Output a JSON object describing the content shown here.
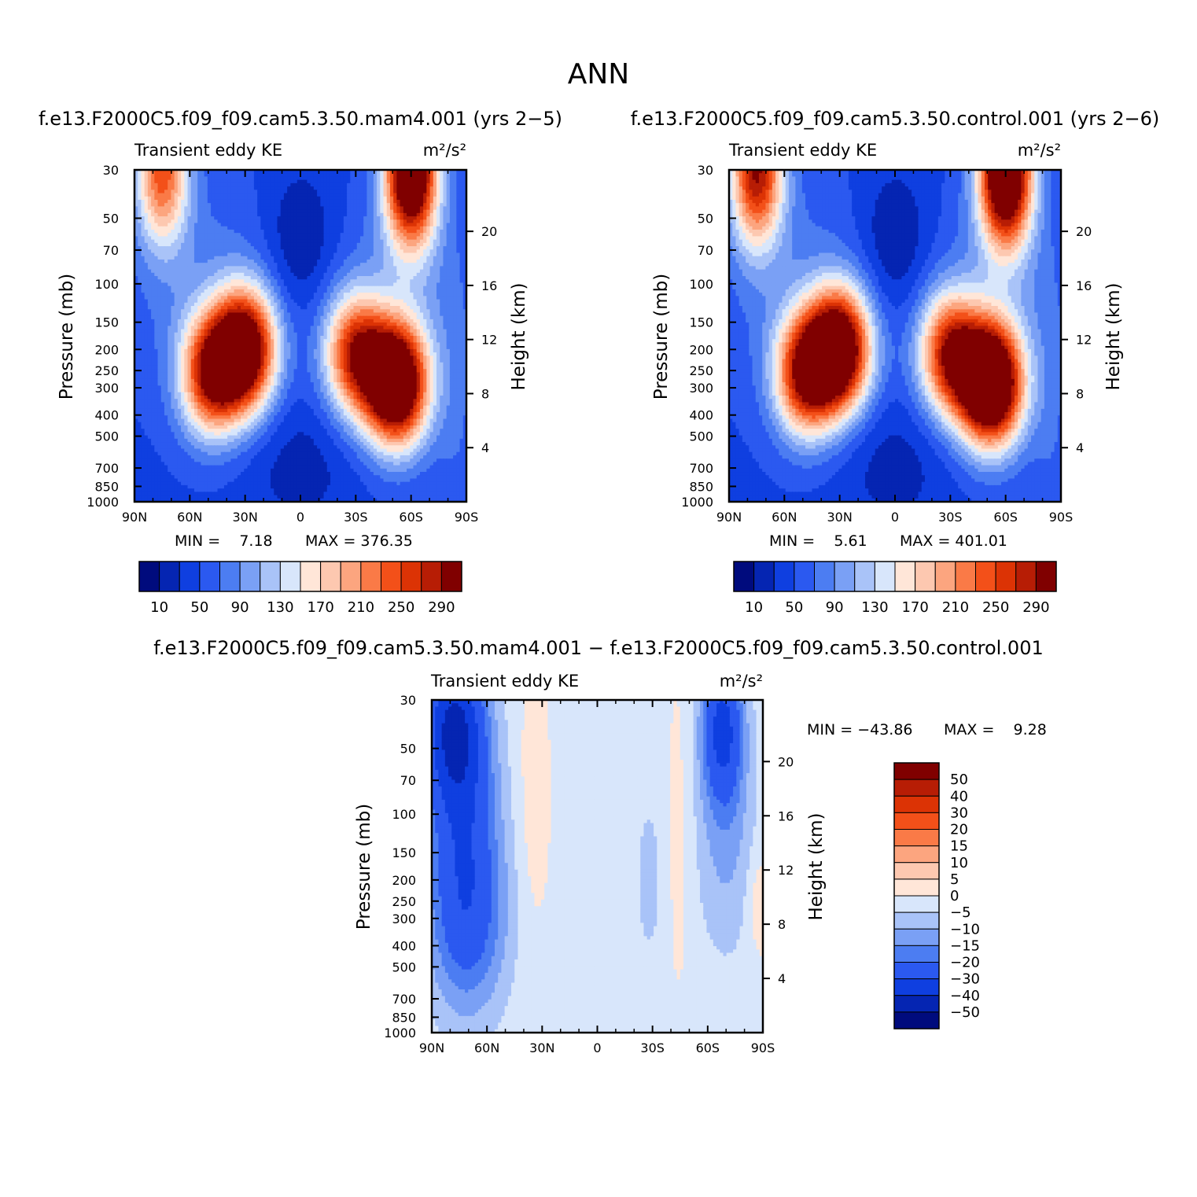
{
  "figure": {
    "title": "ANN",
    "diff_title": "f.e13.F2000C5.f09_f09.cam5.3.50.mam4.001 − f.e13.F2000C5.f09_f09.cam5.3.50.control.001"
  },
  "chart_data": [
    {
      "type": "heatmap",
      "id": "mam4",
      "case_title": "f.e13.F2000C5.f09_f09.cam5.3.50.mam4.001 (yrs 2−5)",
      "variable": "Transient eddy KE",
      "units_text": "m²/s²",
      "ylabel": "Pressure (mb)",
      "ylabel_right": "Height (km)",
      "x_ticks": [
        "90N",
        "60N",
        "30N",
        "0",
        "30S",
        "60S",
        "90S"
      ],
      "x_range": [
        90,
        -90
      ],
      "y_ticks": [
        30,
        50,
        70,
        100,
        150,
        200,
        250,
        300,
        400,
        500,
        700,
        850,
        1000
      ],
      "y_range_mb": [
        30,
        1000
      ],
      "height_ticks_km": [
        4,
        8,
        12,
        16,
        20
      ],
      "min_text": "MIN =    7.18",
      "max_text": "MAX = 376.35",
      "colorbar": {
        "orientation": "horizontal",
        "labels": [
          "10",
          "50",
          "90",
          "130",
          "170",
          "210",
          "250",
          "290"
        ],
        "colors": [
          "#000b7d",
          "#0525b2",
          "#0f3fe0",
          "#2b59f0",
          "#4c7df2",
          "#7aa0f5",
          "#a9c3f8",
          "#d8e6fb",
          "#ffe6d8",
          "#fdc8b0",
          "#fca57f",
          "#fa7a47",
          "#f35019",
          "#dc3305",
          "#b71d05",
          "#800000"
        ]
      },
      "peaks": [
        {
          "lat": 30,
          "p": 200,
          "value": 330
        },
        {
          "lat": 48,
          "p": 260,
          "value": 270
        },
        {
          "lat": -52,
          "p": 290,
          "value": 376.35
        },
        {
          "lat": -30,
          "p": 210,
          "value": 250
        },
        {
          "lat": -60,
          "p": 30,
          "value": 376
        },
        {
          "lat": 75,
          "p": 30,
          "value": 230
        }
      ]
    },
    {
      "type": "heatmap",
      "id": "control",
      "case_title": "f.e13.F2000C5.f09_f09.cam5.3.50.control.001 (yrs 2−6)",
      "variable": "Transient eddy KE",
      "units_text": "m²/s²",
      "ylabel": "Pressure (mb)",
      "ylabel_right": "Height (km)",
      "x_ticks": [
        "90N",
        "60N",
        "30N",
        "0",
        "30S",
        "60S",
        "90S"
      ],
      "x_range": [
        90,
        -90
      ],
      "y_ticks": [
        30,
        50,
        70,
        100,
        150,
        200,
        250,
        300,
        400,
        500,
        700,
        850,
        1000
      ],
      "y_range_mb": [
        30,
        1000
      ],
      "height_ticks_km": [
        4,
        8,
        12,
        16,
        20
      ],
      "min_text": "MIN =    5.61",
      "max_text": "MAX = 401.01",
      "colorbar": {
        "orientation": "horizontal",
        "labels": [
          "10",
          "50",
          "90",
          "130",
          "170",
          "210",
          "250",
          "290"
        ],
        "colors": [
          "#000b7d",
          "#0525b2",
          "#0f3fe0",
          "#2b59f0",
          "#4c7df2",
          "#7aa0f5",
          "#a9c3f8",
          "#d8e6fb",
          "#ffe6d8",
          "#fdc8b0",
          "#fca57f",
          "#fa7a47",
          "#f35019",
          "#dc3305",
          "#b71d05",
          "#800000"
        ]
      },
      "peaks": [
        {
          "lat": 30,
          "p": 200,
          "value": 340
        },
        {
          "lat": 48,
          "p": 260,
          "value": 280
        },
        {
          "lat": -52,
          "p": 290,
          "value": 401.01
        },
        {
          "lat": -30,
          "p": 210,
          "value": 260
        },
        {
          "lat": -60,
          "p": 30,
          "value": 400
        },
        {
          "lat": 75,
          "p": 30,
          "value": 280
        }
      ]
    },
    {
      "type": "heatmap",
      "id": "difference",
      "variable": "Transient eddy KE",
      "units_text": "m²/s²",
      "ylabel": "Pressure (mb)",
      "ylabel_right": "Height (km)",
      "x_ticks": [
        "90N",
        "60N",
        "30N",
        "0",
        "30S",
        "60S",
        "90S"
      ],
      "x_range": [
        90,
        -90
      ],
      "y_ticks": [
        30,
        50,
        70,
        100,
        150,
        200,
        250,
        300,
        400,
        500,
        700,
        850,
        1000
      ],
      "y_range_mb": [
        30,
        1000
      ],
      "height_ticks_km": [
        4,
        8,
        12,
        16,
        20
      ],
      "min_text": "MIN = −43.86",
      "max_text": "MAX =    9.28",
      "colorbar": {
        "orientation": "vertical",
        "labels": [
          "50",
          "40",
          "30",
          "20",
          "15",
          "10",
          "5",
          "0",
          "−5",
          "−10",
          "−15",
          "−20",
          "−30",
          "−40",
          "−50"
        ],
        "colors": [
          "#800000",
          "#b71d05",
          "#dc3305",
          "#f35019",
          "#fa7a47",
          "#fca57f",
          "#fdc8b0",
          "#ffe6d8",
          "#d8e6fb",
          "#a9c3f8",
          "#7aa0f5",
          "#4c7df2",
          "#2b59f0",
          "#0f3fe0",
          "#0525b2",
          "#000b7d"
        ]
      }
    }
  ]
}
